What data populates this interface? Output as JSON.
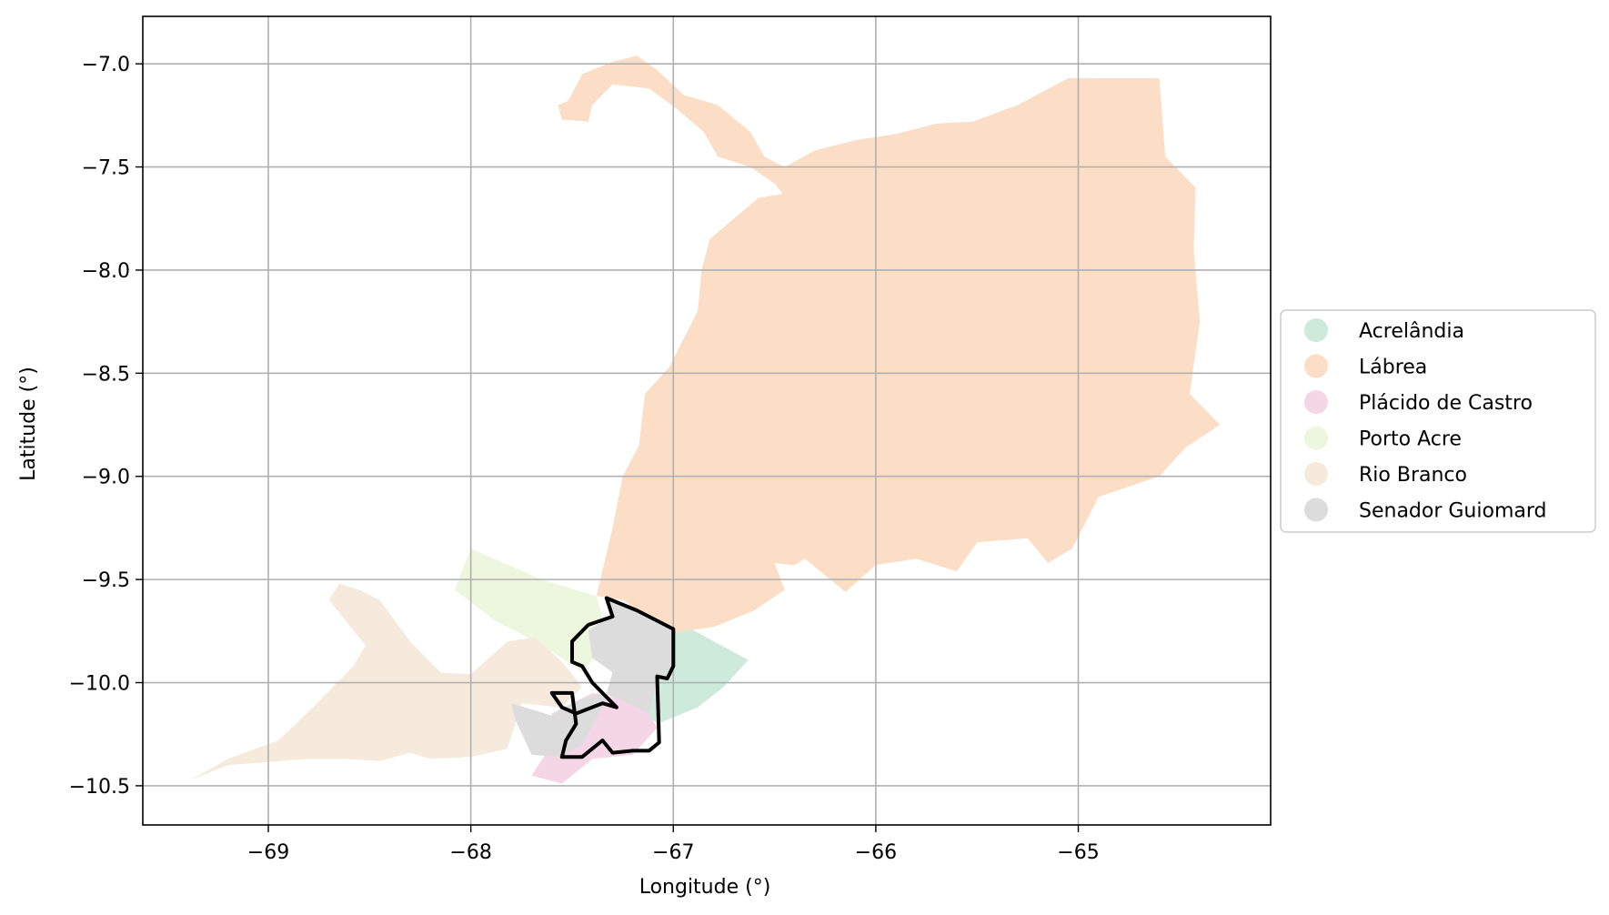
{
  "chart_data": {
    "type": "map",
    "xlabel": "Longitude (°)",
    "ylabel": "Latitude (°)",
    "xlim": [
      -69.62,
      -64.05
    ],
    "ylim": [
      -10.69,
      -6.77
    ],
    "grid": true,
    "x_ticks": [
      -69,
      -68,
      -67,
      -66,
      -65
    ],
    "y_ticks": [
      -7.0,
      -7.5,
      -8.0,
      -8.5,
      -9.0,
      -9.5,
      -10.0,
      -10.5
    ],
    "x_tick_labels": [
      "−69",
      "−68",
      "−67",
      "−66",
      "−65"
    ],
    "y_tick_labels": [
      "−7.0",
      "−7.5",
      "−8.0",
      "−8.5",
      "−9.0",
      "−9.5",
      "−10.0",
      "−10.5"
    ],
    "legend_position": "right",
    "regions": [
      {
        "name": "Acrelândia",
        "color": "#cdeadb",
        "polygon": [
          [
            -67.17,
            -9.62
          ],
          [
            -66.95,
            -9.72
          ],
          [
            -66.63,
            -9.89
          ],
          [
            -66.75,
            -10.02
          ],
          [
            -66.88,
            -10.12
          ],
          [
            -67.08,
            -10.2
          ],
          [
            -67.17,
            -10.12
          ],
          [
            -67.12,
            -9.93
          ],
          [
            -67.2,
            -9.75
          ]
        ]
      },
      {
        "name": "Lábrea",
        "color": "#fcdec6",
        "polygon": [
          [
            -67.52,
            -7.18
          ],
          [
            -67.45,
            -7.05
          ],
          [
            -67.3,
            -6.99
          ],
          [
            -67.18,
            -6.96
          ],
          [
            -67.08,
            -7.03
          ],
          [
            -66.95,
            -7.15
          ],
          [
            -66.78,
            -7.2
          ],
          [
            -66.62,
            -7.33
          ],
          [
            -66.55,
            -7.45
          ],
          [
            -66.45,
            -7.5
          ],
          [
            -66.3,
            -7.42
          ],
          [
            -66.1,
            -7.37
          ],
          [
            -65.9,
            -7.34
          ],
          [
            -65.7,
            -7.29
          ],
          [
            -65.52,
            -7.28
          ],
          [
            -65.3,
            -7.2
          ],
          [
            -65.05,
            -7.07
          ],
          [
            -64.6,
            -7.07
          ],
          [
            -64.57,
            -7.45
          ],
          [
            -64.42,
            -7.6
          ],
          [
            -64.43,
            -7.9
          ],
          [
            -64.4,
            -8.25
          ],
          [
            -64.45,
            -8.6
          ],
          [
            -64.3,
            -8.75
          ],
          [
            -64.47,
            -8.86
          ],
          [
            -64.6,
            -9.0
          ],
          [
            -64.9,
            -9.1
          ],
          [
            -65.03,
            -9.35
          ],
          [
            -65.15,
            -9.42
          ],
          [
            -65.25,
            -9.3
          ],
          [
            -65.5,
            -9.32
          ],
          [
            -65.6,
            -9.46
          ],
          [
            -65.8,
            -9.4
          ],
          [
            -66.0,
            -9.43
          ],
          [
            -66.15,
            -9.56
          ],
          [
            -66.35,
            -9.4
          ],
          [
            -66.4,
            -9.43
          ],
          [
            -66.5,
            -9.42
          ],
          [
            -66.45,
            -9.55
          ],
          [
            -66.6,
            -9.65
          ],
          [
            -66.8,
            -9.73
          ],
          [
            -67.02,
            -9.76
          ],
          [
            -67.12,
            -9.68
          ],
          [
            -67.25,
            -9.6
          ],
          [
            -67.38,
            -9.58
          ],
          [
            -67.3,
            -9.25
          ],
          [
            -67.25,
            -9.0
          ],
          [
            -67.17,
            -8.85
          ],
          [
            -67.14,
            -8.6
          ],
          [
            -67.02,
            -8.47
          ],
          [
            -66.88,
            -8.2
          ],
          [
            -66.86,
            -8.0
          ],
          [
            -66.82,
            -7.85
          ],
          [
            -66.7,
            -7.75
          ],
          [
            -66.58,
            -7.65
          ],
          [
            -66.46,
            -7.63
          ],
          [
            -66.5,
            -7.58
          ],
          [
            -66.62,
            -7.5
          ],
          [
            -66.78,
            -7.45
          ],
          [
            -66.85,
            -7.33
          ],
          [
            -66.98,
            -7.22
          ],
          [
            -67.12,
            -7.12
          ],
          [
            -67.3,
            -7.1
          ],
          [
            -67.4,
            -7.2
          ],
          [
            -67.42,
            -7.28
          ],
          [
            -67.55,
            -7.27
          ],
          [
            -67.57,
            -7.2
          ]
        ]
      },
      {
        "name": "Plácido de Castro",
        "color": "#f5d6e7",
        "polygon": [
          [
            -67.6,
            -10.15
          ],
          [
            -67.4,
            -10.05
          ],
          [
            -67.15,
            -10.1
          ],
          [
            -67.08,
            -10.22
          ],
          [
            -67.2,
            -10.35
          ],
          [
            -67.4,
            -10.37
          ],
          [
            -67.55,
            -10.49
          ],
          [
            -67.7,
            -10.45
          ],
          [
            -67.62,
            -10.33
          ]
        ]
      },
      {
        "name": "Porto Acre",
        "color": "#edf7de",
        "polygon": [
          [
            -68.0,
            -9.35
          ],
          [
            -67.65,
            -9.5
          ],
          [
            -67.38,
            -9.58
          ],
          [
            -67.32,
            -9.8
          ],
          [
            -67.45,
            -9.95
          ],
          [
            -67.55,
            -9.88
          ],
          [
            -67.72,
            -9.78
          ],
          [
            -67.88,
            -9.7
          ],
          [
            -68.08,
            -9.55
          ]
        ]
      },
      {
        "name": "Rio Branco",
        "color": "#f5eadb",
        "polygon": [
          [
            -69.38,
            -10.47
          ],
          [
            -69.2,
            -10.37
          ],
          [
            -68.95,
            -10.28
          ],
          [
            -68.78,
            -10.12
          ],
          [
            -68.58,
            -9.92
          ],
          [
            -68.52,
            -9.82
          ],
          [
            -68.7,
            -9.6
          ],
          [
            -68.65,
            -9.52
          ],
          [
            -68.55,
            -9.55
          ],
          [
            -68.45,
            -9.6
          ],
          [
            -68.3,
            -9.8
          ],
          [
            -68.15,
            -9.95
          ],
          [
            -68.0,
            -9.96
          ],
          [
            -67.82,
            -9.8
          ],
          [
            -67.68,
            -9.78
          ],
          [
            -67.55,
            -9.9
          ],
          [
            -67.45,
            -10.02
          ],
          [
            -67.55,
            -10.12
          ],
          [
            -67.75,
            -10.1
          ],
          [
            -67.78,
            -10.2
          ],
          [
            -67.82,
            -10.32
          ],
          [
            -68.0,
            -10.36
          ],
          [
            -68.2,
            -10.37
          ],
          [
            -68.3,
            -10.34
          ],
          [
            -68.45,
            -10.38
          ],
          [
            -68.62,
            -10.37
          ],
          [
            -68.8,
            -10.37
          ],
          [
            -69.2,
            -10.4
          ]
        ]
      },
      {
        "name": "Senador Guiomard",
        "color": "#dcdcdc",
        "polygon": [
          [
            -67.33,
            -9.6
          ],
          [
            -67.2,
            -9.65
          ],
          [
            -67.1,
            -9.7
          ],
          [
            -67.0,
            -9.74
          ],
          [
            -67.0,
            -9.92
          ],
          [
            -67.08,
            -9.98
          ],
          [
            -67.12,
            -10.15
          ],
          [
            -67.22,
            -10.1
          ],
          [
            -67.35,
            -10.05
          ],
          [
            -67.45,
            -10.08
          ],
          [
            -67.6,
            -10.16
          ],
          [
            -67.8,
            -10.1
          ],
          [
            -67.78,
            -10.18
          ],
          [
            -67.7,
            -10.35
          ],
          [
            -67.55,
            -10.36
          ],
          [
            -67.45,
            -10.3
          ],
          [
            -67.35,
            -10.12
          ],
          [
            -67.3,
            -9.95
          ],
          [
            -67.4,
            -9.88
          ],
          [
            -67.42,
            -9.75
          ],
          [
            -67.3,
            -9.67
          ]
        ]
      }
    ],
    "highlight_outline": {
      "name": "Senador Guiomard",
      "color": "#000000",
      "polygon": [
        [
          -67.33,
          -9.59
        ],
        [
          -67.18,
          -9.65
        ],
        [
          -67.08,
          -9.7
        ],
        [
          -67.0,
          -9.74
        ],
        [
          -67.0,
          -9.92
        ],
        [
          -67.03,
          -9.98
        ],
        [
          -67.08,
          -9.97
        ],
        [
          -67.07,
          -10.29
        ],
        [
          -67.12,
          -10.33
        ],
        [
          -67.2,
          -10.33
        ],
        [
          -67.3,
          -10.34
        ],
        [
          -67.35,
          -10.28
        ],
        [
          -67.45,
          -10.36
        ],
        [
          -67.55,
          -10.36
        ],
        [
          -67.53,
          -10.28
        ],
        [
          -67.48,
          -10.2
        ],
        [
          -67.5,
          -10.05
        ],
        [
          -67.6,
          -10.05
        ],
        [
          -67.55,
          -10.12
        ],
        [
          -67.48,
          -10.15
        ],
        [
          -67.35,
          -10.1
        ],
        [
          -67.28,
          -10.12
        ],
        [
          -67.35,
          -10.05
        ],
        [
          -67.4,
          -10.0
        ],
        [
          -67.45,
          -9.92
        ],
        [
          -67.5,
          -9.9
        ],
        [
          -67.5,
          -9.8
        ],
        [
          -67.42,
          -9.72
        ],
        [
          -67.3,
          -9.68
        ]
      ]
    }
  },
  "legend": {
    "items": [
      {
        "label": "Acrelândia",
        "color": "#cdeadb"
      },
      {
        "label": "Lábrea",
        "color": "#fcdec6"
      },
      {
        "label": "Plácido de Castro",
        "color": "#f5d6e7"
      },
      {
        "label": "Porto Acre",
        "color": "#edf7de"
      },
      {
        "label": "Rio Branco",
        "color": "#f5eadb"
      },
      {
        "label": "Senador Guiomard",
        "color": "#dcdcdc"
      }
    ]
  }
}
